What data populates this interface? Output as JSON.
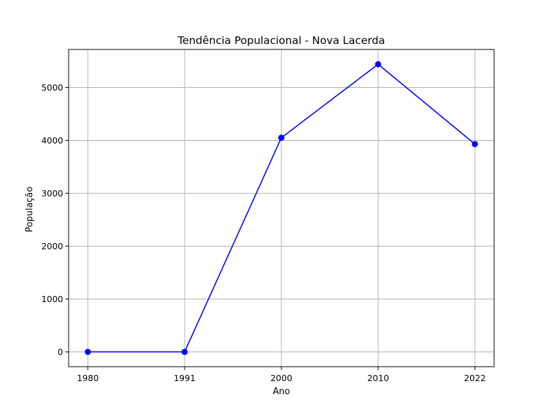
{
  "chart_data": {
    "type": "line",
    "title": "Tendência Populacional - Nova Lacerda",
    "xlabel": "Ano",
    "ylabel": "População",
    "categories": [
      "1980",
      "1991",
      "2000",
      "2010",
      "2022"
    ],
    "series": [
      {
        "values": [
          0,
          0,
          4050,
          5440,
          3930
        ],
        "color": "#0000ff",
        "marker": "circle"
      }
    ],
    "ylim": [
      -280,
      5720
    ],
    "yticks": [
      0,
      1000,
      2000,
      3000,
      4000,
      5000
    ],
    "grid": true
  }
}
